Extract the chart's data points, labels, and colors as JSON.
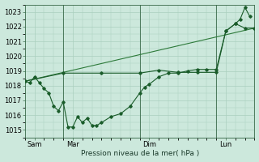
{
  "xlabel": "Pression niveau de la mer( hPa )",
  "background_color": "#cce8dc",
  "grid_color": "#aacfbe",
  "line_color1": "#1a5c2a",
  "line_color2": "#2d7a3a",
  "ylim": [
    1014.5,
    1023.5
  ],
  "yticks": [
    1015,
    1016,
    1017,
    1018,
    1019,
    1020,
    1021,
    1022,
    1023
  ],
  "xlim": [
    0,
    24
  ],
  "vline_positions": [
    4,
    12,
    20
  ],
  "day_positions": [
    1,
    5,
    13,
    21
  ],
  "day_labels": [
    "Sam",
    "Mar",
    "Dim",
    "Lun"
  ],
  "s1x": [
    0,
    0.5,
    1,
    1.5,
    2,
    2.5,
    3,
    3.5,
    4,
    4.5,
    5,
    5.5,
    6,
    6.5,
    7,
    7.5,
    8,
    9,
    10,
    11,
    12,
    12.5,
    13,
    14,
    15,
    16,
    17,
    18,
    19,
    20,
    21,
    22,
    22.5,
    23,
    23.5
  ],
  "s1y": [
    1018.3,
    1018.2,
    1018.6,
    1018.2,
    1017.8,
    1017.5,
    1016.6,
    1016.3,
    1016.9,
    1015.2,
    1015.2,
    1015.9,
    1015.5,
    1015.8,
    1015.3,
    1015.3,
    1015.5,
    1015.9,
    1016.1,
    1016.6,
    1017.5,
    1017.9,
    1018.1,
    1018.6,
    1018.85,
    1018.85,
    1019.0,
    1019.1,
    1019.1,
    1019.1,
    1021.7,
    1022.2,
    1022.5,
    1023.3,
    1022.7
  ],
  "s2x": [
    0,
    4,
    8,
    12,
    14,
    16,
    18,
    20,
    21,
    22,
    23,
    24
  ],
  "s2y": [
    1018.3,
    1018.85,
    1018.85,
    1018.85,
    1019.05,
    1018.9,
    1018.9,
    1018.9,
    1021.7,
    1022.2,
    1021.9,
    1021.9
  ],
  "s3x": [
    0,
    24
  ],
  "s3y": [
    1018.3,
    1021.9
  ]
}
